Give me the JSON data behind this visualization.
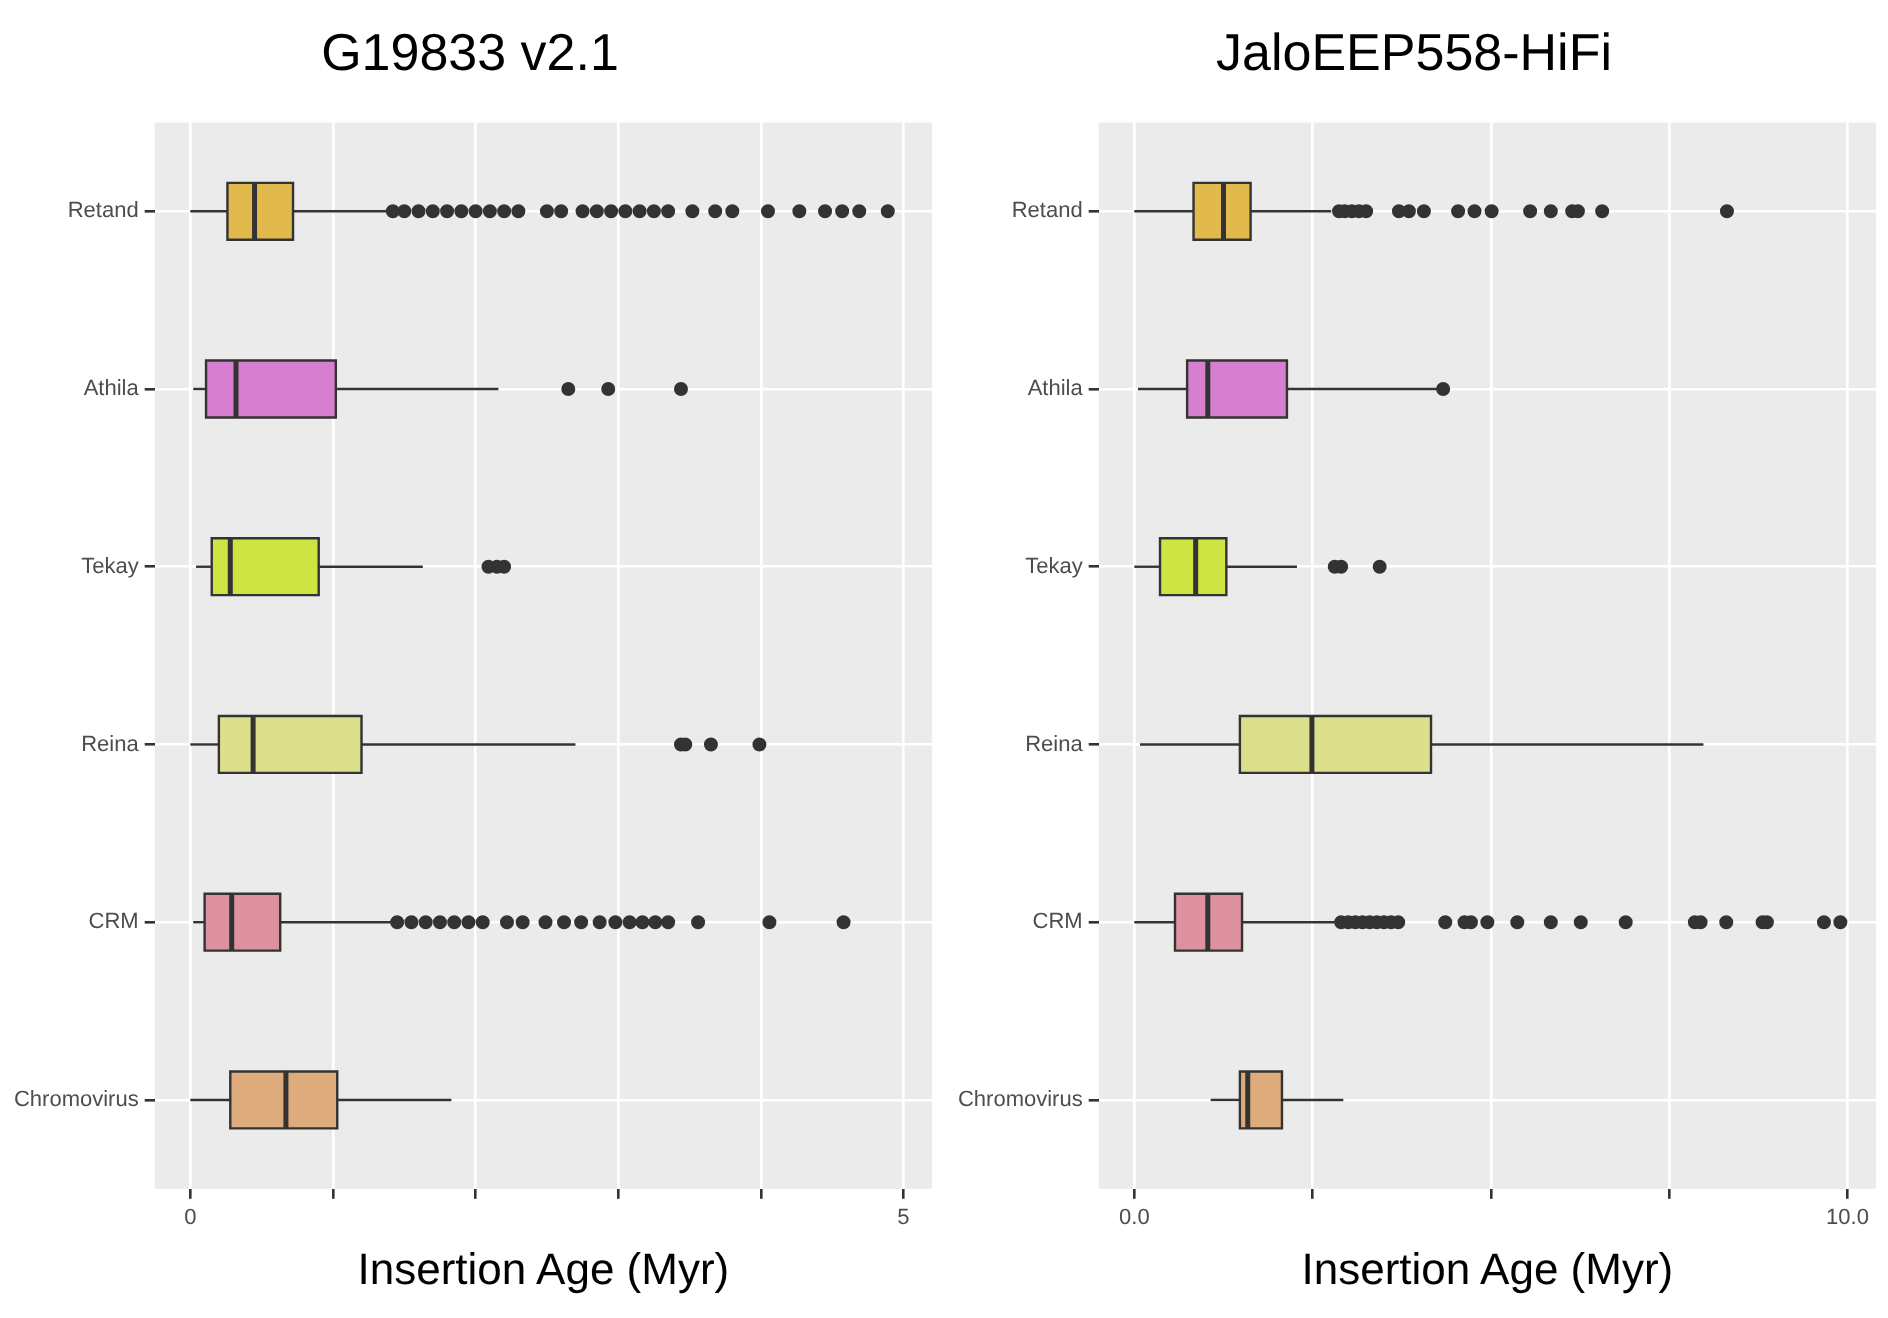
{
  "chart_data": [
    {
      "type": "box",
      "title": "G19833 v2.1",
      "xlabel": "Insertion Age (Myr)",
      "orientation": "horizontal",
      "grid": true,
      "categories": [
        "Retand",
        "Athila",
        "Tekay",
        "Reina",
        "CRM",
        "Chromovirus"
      ],
      "colors": [
        "#e2b94d",
        "#d67fd1",
        "#cde443",
        "#dde08a",
        "#de929f",
        "#ddab7c"
      ],
      "xlim": [
        -0.25,
        5.2
      ],
      "xticks": [
        0,
        {
          "value": 1,
          "label": null
        },
        {
          "value": 2,
          "label": null
        },
        {
          "value": 3,
          "label": null
        },
        {
          "value": 4,
          "label": null
        },
        5
      ],
      "boxes": [
        {
          "low": 0,
          "q1": 0.26,
          "median": 0.45,
          "q3": 0.72,
          "high": 1.39,
          "outliers": [
            1.42,
            1.5,
            1.6,
            1.7,
            1.8,
            1.9,
            2.0,
            2.1,
            2.2,
            2.3,
            2.5,
            2.6,
            2.75,
            2.85,
            2.95,
            3.05,
            3.15,
            3.25,
            3.35,
            3.52,
            3.68,
            3.8,
            4.05,
            4.27,
            4.45,
            4.57,
            4.69,
            4.89
          ]
        },
        {
          "low": 0.02,
          "q1": 0.11,
          "median": 0.32,
          "q3": 1.02,
          "high": 2.16,
          "outliers": [
            2.65,
            2.93,
            3.44
          ]
        },
        {
          "low": 0.04,
          "q1": 0.15,
          "median": 0.28,
          "q3": 0.9,
          "high": 1.63,
          "outliers": [
            2.09,
            2.15,
            2.2
          ]
        },
        {
          "low": 0,
          "q1": 0.2,
          "median": 0.44,
          "q3": 1.2,
          "high": 2.7,
          "outliers": [
            3.44,
            3.47,
            3.65,
            3.99
          ]
        },
        {
          "low": 0.02,
          "q1": 0.1,
          "median": 0.29,
          "q3": 0.63,
          "high": 1.41,
          "outliers": [
            1.45,
            1.55,
            1.65,
            1.75,
            1.85,
            1.95,
            2.05,
            2.22,
            2.33,
            2.49,
            2.62,
            2.74,
            2.87,
            2.98,
            3.08,
            3.17,
            3.26,
            3.35,
            3.56,
            4.06,
            4.58
          ]
        },
        {
          "low": 0,
          "q1": 0.28,
          "median": 0.67,
          "q3": 1.03,
          "high": 1.83
        }
      ]
    },
    {
      "type": "box",
      "title": "JaloEEP558-HiFi",
      "xlabel": "Insertion Age (Myr)",
      "orientation": "horizontal",
      "grid": true,
      "categories": [
        "Retand",
        "Athila",
        "Tekay",
        "Reina",
        "CRM",
        "Chromovirus"
      ],
      "colors": [
        "#e2b94d",
        "#d67fd1",
        "#cde443",
        "#dde08a",
        "#de929f",
        "#ddab7c"
      ],
      "xlim": [
        -0.5,
        10.4
      ],
      "xticks": [
        {
          "value": 0,
          "label": "0.0"
        },
        {
          "value": 2.5,
          "label": null
        },
        {
          "value": 5,
          "label": null
        },
        {
          "value": 7.5,
          "label": null
        },
        {
          "value": 10,
          "label": "10.0"
        }
      ],
      "boxes": [
        {
          "low": 0,
          "q1": 0.83,
          "median": 1.25,
          "q3": 1.63,
          "high": 2.76,
          "outliers": [
            2.87,
            2.95,
            3.05,
            3.15,
            3.25,
            3.71,
            3.85,
            4.06,
            4.54,
            4.77,
            5.01,
            5.55,
            5.84,
            6.14,
            6.22,
            6.56,
            8.31
          ]
        },
        {
          "low": 0.05,
          "q1": 0.74,
          "median": 1.03,
          "q3": 2.14,
          "high": 4.25,
          "outliers": [
            4.33
          ]
        },
        {
          "low": 0,
          "q1": 0.36,
          "median": 0.86,
          "q3": 1.29,
          "high": 2.28,
          "outliers": [
            2.81,
            2.9,
            3.44
          ]
        },
        {
          "low": 0.08,
          "q1": 1.48,
          "median": 2.49,
          "q3": 4.16,
          "high": 7.98
        },
        {
          "low": 0,
          "q1": 0.57,
          "median": 1.03,
          "q3": 1.51,
          "high": 2.81,
          "outliers": [
            2.9,
            3.0,
            3.1,
            3.2,
            3.3,
            3.4,
            3.5,
            3.6,
            3.7,
            4.36,
            4.63,
            4.72,
            4.95,
            5.37,
            5.84,
            6.26,
            6.89,
            7.86,
            7.94,
            8.3,
            8.81,
            8.87,
            9.67,
            9.9
          ]
        },
        {
          "low": 1.07,
          "q1": 1.48,
          "median": 1.59,
          "q3": 2.07,
          "high": 2.93
        }
      ]
    }
  ]
}
